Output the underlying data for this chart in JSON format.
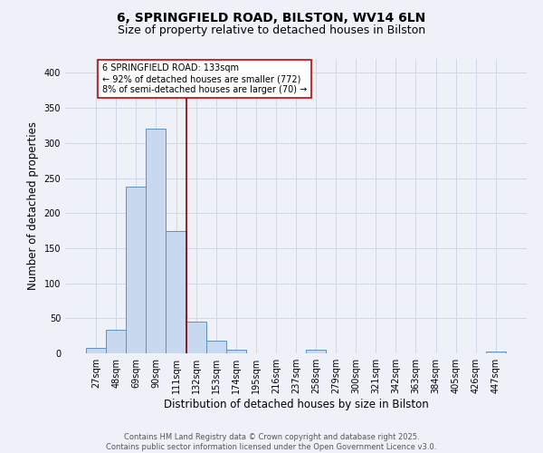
{
  "title_line1": "6, SPRINGFIELD ROAD, BILSTON, WV14 6LN",
  "title_line2": "Size of property relative to detached houses in Bilston",
  "xlabel": "Distribution of detached houses by size in Bilston",
  "ylabel": "Number of detached properties",
  "bin_labels": [
    "27sqm",
    "48sqm",
    "69sqm",
    "90sqm",
    "111sqm",
    "132sqm",
    "153sqm",
    "174sqm",
    "195sqm",
    "216sqm",
    "237sqm",
    "258sqm",
    "279sqm",
    "300sqm",
    "321sqm",
    "342sqm",
    "363sqm",
    "384sqm",
    "405sqm",
    "426sqm",
    "447sqm"
  ],
  "bar_values": [
    8,
    33,
    238,
    320,
    175,
    45,
    18,
    5,
    0,
    0,
    0,
    5,
    0,
    0,
    0,
    0,
    0,
    0,
    0,
    0,
    2
  ],
  "bar_color": "#c8d8ee",
  "bar_edge_color": "#6090c0",
  "red_line_x": 4.5,
  "annotation_text_lines": [
    "6 SPRINGFIELD ROAD: 133sqm",
    "← 92% of detached houses are smaller (772)",
    "8% of semi-detached houses are larger (70) →"
  ],
  "annotation_box_color": "white",
  "annotation_box_edge_color": "#cc0000",
  "red_line_color": "#8b0000",
  "ylim": [
    0,
    420
  ],
  "yticks": [
    0,
    50,
    100,
    150,
    200,
    250,
    300,
    350,
    400
  ],
  "grid_color": "#d0d8e8",
  "background_color": "#eef2f8",
  "footer_line1": "Contains HM Land Registry data © Crown copyright and database right 2025.",
  "footer_line2": "Contains public sector information licensed under the Open Government Licence v3.0.",
  "title_fontsize": 10,
  "subtitle_fontsize": 9,
  "axis_label_fontsize": 8.5,
  "tick_fontsize": 7,
  "annotation_fontsize": 7,
  "footer_fontsize": 6
}
